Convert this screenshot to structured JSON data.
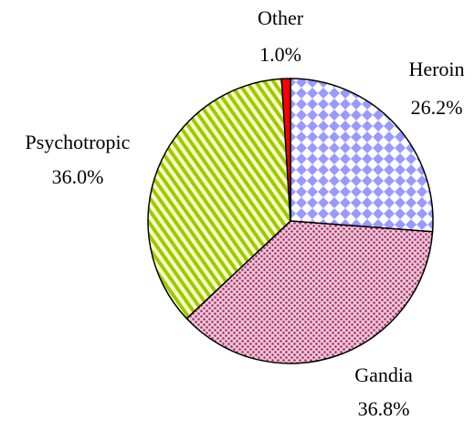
{
  "chart_data": {
    "type": "pie",
    "categories": [
      "Heroin",
      "Gandia",
      "Psychotropic",
      "Other"
    ],
    "values": [
      26.2,
      36.8,
      36.0,
      1.0
    ],
    "value_labels": [
      "26.2%",
      "36.8%",
      "36.0%",
      "1.0%"
    ],
    "colors": [
      "#9999ff",
      "#993366",
      "#99cc00",
      "#ff0000"
    ]
  }
}
